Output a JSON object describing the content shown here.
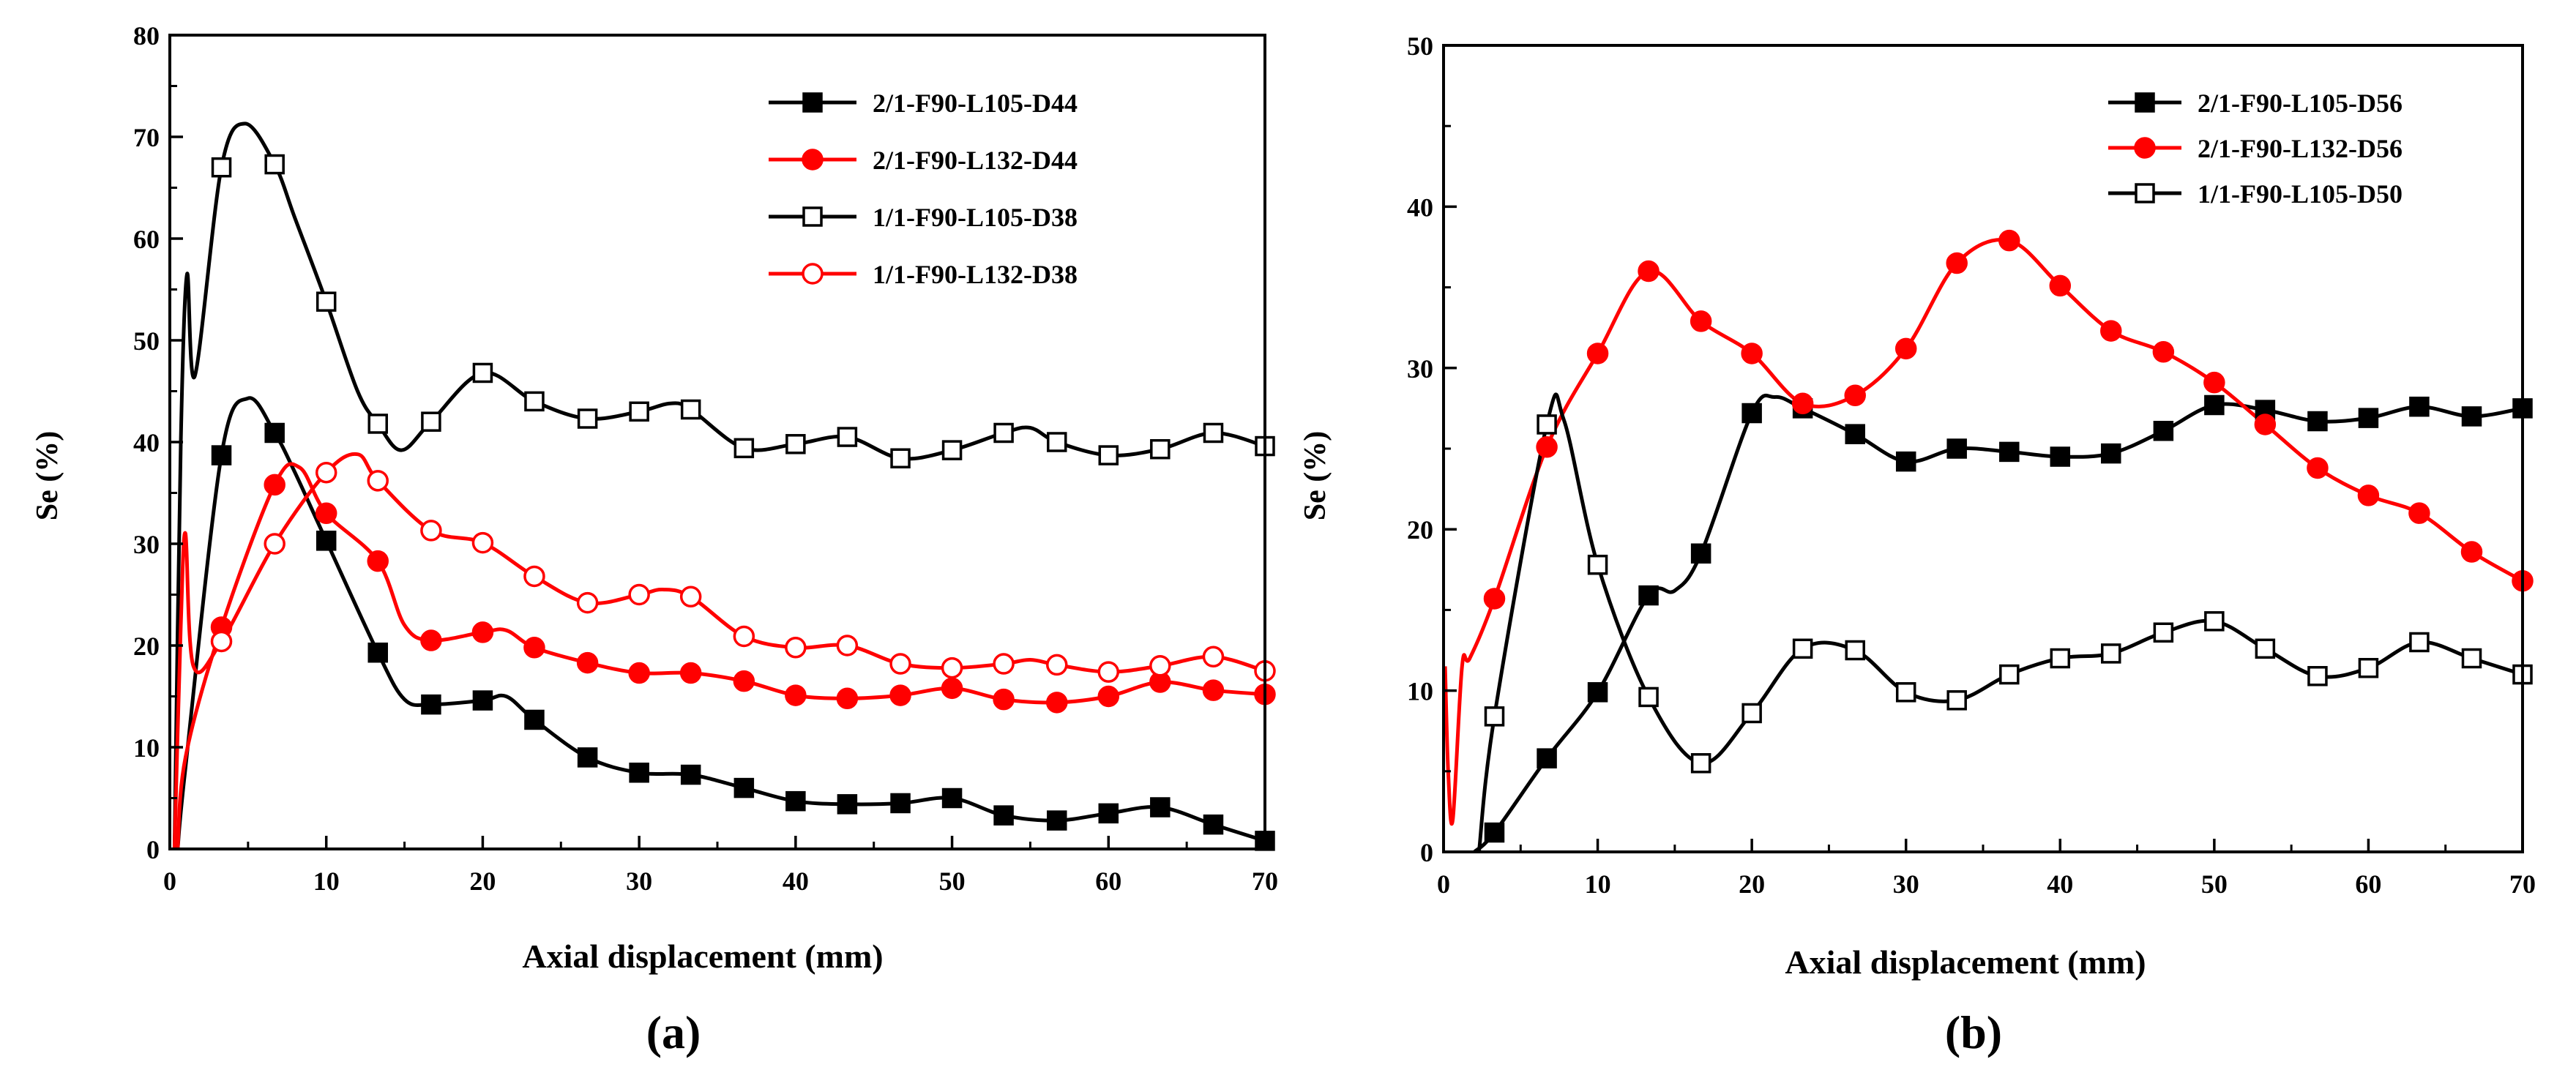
{
  "panels": [
    {
      "panel_label": "(a)",
      "chart_data": {
        "type": "line",
        "xlabel": "Axial displacement (mm)",
        "ylabel": "Se (%)",
        "xlim": [
          0,
          70
        ],
        "ylim": [
          0,
          80
        ],
        "xticks": [
          0,
          10,
          20,
          30,
          40,
          50,
          60,
          70
        ],
        "yticks": [
          0,
          10,
          20,
          30,
          40,
          50,
          60,
          70,
          80
        ],
        "grid": false,
        "legend_position": "top-right",
        "series": [
          {
            "name": "2/1-F90-L105-D44",
            "color": "#000000",
            "marker": "square-filled",
            "x": [
              0.5,
              1,
              3.3,
              5,
              6.7,
              8,
              10,
              13.3,
              15,
              16.7,
              20,
              21.5,
              23.3,
              26.7,
              30,
              33.3,
              36.7,
              40,
              43.3,
              46.7,
              50,
              53.3,
              56.7,
              60,
              63.3,
              66.7,
              70
            ],
            "y": [
              0,
              8,
              38.7,
              44.3,
              40.9,
              37,
              30.3,
              19.3,
              14.7,
              14.2,
              14.6,
              15,
              12.7,
              9.0,
              7.5,
              7.3,
              6.0,
              4.7,
              4.4,
              4.5,
              5.0,
              3.3,
              2.8,
              3.5,
              4.1,
              2.4,
              0.8
            ],
            "markers_x": [
              3.3,
              6.7,
              10,
              13.3,
              16.7,
              20,
              23.3,
              26.7,
              30,
              33.3,
              36.7,
              40,
              43.3,
              46.7,
              50,
              53.3,
              56.7,
              60,
              63.3,
              66.7,
              70
            ]
          },
          {
            "name": "2/1-F90-L132-D44",
            "color": "#ff0000",
            "marker": "circle-filled",
            "x": [
              0.5,
              1,
              3.3,
              6.7,
              8.3,
              10,
              13.3,
              15,
              16.7,
              20,
              21.5,
              23.3,
              26.7,
              30,
              33.3,
              36.7,
              40,
              43.3,
              46.7,
              50,
              53.3,
              56.7,
              60,
              63.3,
              66.7,
              70
            ],
            "y": [
              0,
              9,
              21.8,
              35.8,
              37.5,
              33.0,
              28.3,
              22,
              20.5,
              21.3,
              21.5,
              19.8,
              18.3,
              17.3,
              17.3,
              16.5,
              15.1,
              14.8,
              15.1,
              15.8,
              14.7,
              14.4,
              15.0,
              16.4,
              15.6,
              15.2
            ],
            "markers_x": [
              3.3,
              6.7,
              10,
              13.3,
              16.7,
              20,
              23.3,
              26.7,
              30,
              33.3,
              36.7,
              40,
              43.3,
              46.7,
              50,
              53.3,
              56.7,
              60,
              63.3,
              66.7,
              70
            ]
          },
          {
            "name": "1/1-F90-L105-D38",
            "color": "#000000",
            "marker": "square-open",
            "x": [
              0.3,
              0.7,
              1.1,
              1.6,
              3.3,
              4.8,
              6.7,
              8,
              10,
              12,
              13.3,
              14.8,
              16.7,
              20,
              23.3,
              26.7,
              30,
              32,
              33.3,
              36.7,
              40,
              43.3,
              46.7,
              50,
              53.3,
              55,
              56.7,
              60,
              63.3,
              66.7,
              70
            ],
            "y": [
              0,
              40,
              56.5,
              46.5,
              67,
              71.3,
              67.3,
              62,
              53.8,
              45,
              41.8,
              39.2,
              42.0,
              46.8,
              44.0,
              42.3,
              43.0,
              43.8,
              43.2,
              39.4,
              39.8,
              40.5,
              38.4,
              39.2,
              40.9,
              41.4,
              40.0,
              38.7,
              39.3,
              40.9,
              39.6
            ],
            "markers_x": [
              3.3,
              6.7,
              10,
              13.3,
              16.7,
              20,
              23.3,
              26.7,
              30,
              33.3,
              36.7,
              40,
              43.3,
              46.7,
              50,
              53.3,
              56.7,
              60,
              63.3,
              66.7,
              70
            ]
          },
          {
            "name": "1/1-F90-L132-D38",
            "color": "#ff0000",
            "marker": "circle-open",
            "x": [
              0.3,
              0.7,
              1.0,
              1.5,
              3.3,
              6.7,
              10,
              12,
              13.3,
              16.7,
              20,
              23.3,
              26.7,
              30,
              31.5,
              33.3,
              36.7,
              40,
              43.3,
              46.7,
              50,
              53.3,
              55,
              56.7,
              60,
              63.3,
              66.7,
              70
            ],
            "y": [
              0,
              22,
              31,
              18,
              20.4,
              30.0,
              37.0,
              38.8,
              36.2,
              31.3,
              30.1,
              26.8,
              24.2,
              25.0,
              25.5,
              24.8,
              20.9,
              19.8,
              20.0,
              18.2,
              17.8,
              18.2,
              18.6,
              18.1,
              17.4,
              18.0,
              18.9,
              17.5
            ],
            "markers_x": [
              3.3,
              6.7,
              10,
              13.3,
              16.7,
              20,
              23.3,
              26.7,
              30,
              33.3,
              36.7,
              40,
              43.3,
              46.7,
              50,
              53.3,
              56.7,
              60,
              63.3,
              66.7,
              70
            ]
          }
        ]
      }
    },
    {
      "panel_label": "(b)",
      "chart_data": {
        "type": "line",
        "xlabel": "Axial displacement (mm)",
        "ylabel": "Se (%)",
        "xlim": [
          0,
          70
        ],
        "ylim": [
          0,
          50
        ],
        "xticks": [
          0,
          10,
          20,
          30,
          40,
          50,
          60,
          70
        ],
        "yticks": [
          0,
          10,
          20,
          30,
          40,
          50
        ],
        "grid": false,
        "legend_position": "top-right",
        "series": [
          {
            "name": "2/1-F90-L105-D56",
            "color": "#000000",
            "marker": "square-filled",
            "x": [
              2.0,
              3.3,
              6.7,
              10,
              13.3,
              15,
              16.7,
              20,
              21.5,
              23.3,
              26.7,
              30,
              33.3,
              36.7,
              40,
              43.3,
              46.7,
              50,
              53.3,
              56.7,
              60,
              63.3,
              66.7,
              70
            ],
            "y": [
              0,
              1.2,
              5.8,
              9.9,
              15.9,
              16.2,
              18.5,
              27.2,
              28.2,
              27.5,
              25.9,
              24.2,
              25.0,
              24.8,
              24.5,
              24.7,
              26.1,
              27.7,
              27.4,
              26.7,
              26.9,
              27.6,
              27.0,
              27.5
            ],
            "markers_x": [
              3.3,
              6.7,
              10,
              13.3,
              16.7,
              20,
              23.3,
              26.7,
              30,
              33.3,
              36.7,
              40,
              43.3,
              46.7,
              50,
              53.3,
              56.7,
              60,
              63.3,
              66.7,
              70
            ]
          },
          {
            "name": "2/1-F90-L132-D56",
            "color": "#ff0000",
            "marker": "circle-filled",
            "x": [
              0.1,
              0.3,
              0.6,
              1.2,
              1.7,
              3.3,
              6.7,
              10,
              13.3,
              16.7,
              20,
              23.3,
              26.7,
              30,
              33.3,
              36.7,
              40,
              43.3,
              46.7,
              50,
              53.3,
              56.7,
              60,
              63.3,
              66.7,
              70
            ],
            "y": [
              11.5,
              5,
              2,
              11.5,
              12,
              15.7,
              25.1,
              30.9,
              36.0,
              32.9,
              30.9,
              27.8,
              28.3,
              31.2,
              36.5,
              37.9,
              35.1,
              32.3,
              31.0,
              29.1,
              26.5,
              23.8,
              22.1,
              21.0,
              18.6,
              16.8
            ],
            "markers_x": [
              3.3,
              6.7,
              10,
              13.3,
              16.7,
              20,
              23.3,
              26.7,
              30,
              33.3,
              36.7,
              40,
              43.3,
              46.7,
              50,
              53.3,
              56.7,
              60,
              63.3,
              66.7,
              70
            ]
          },
          {
            "name": "1/1-F90-L105-D50",
            "color": "#000000",
            "marker": "square-open",
            "x": [
              2.3,
              3.3,
              6.7,
              7.8,
              10,
              13.3,
              16.7,
              20,
              23.3,
              26.7,
              30,
              33.3,
              36.7,
              40,
              43.3,
              46.7,
              50,
              53.3,
              56.7,
              60,
              63.3,
              66.7,
              70
            ],
            "y": [
              0,
              8.4,
              26.5,
              26.8,
              17.8,
              9.6,
              5.5,
              8.6,
              12.6,
              12.5,
              9.9,
              9.4,
              11.0,
              12.0,
              12.3,
              13.6,
              14.3,
              12.6,
              10.9,
              11.4,
              13.0,
              12.0,
              11.0
            ],
            "markers_x": [
              3.3,
              6.7,
              10,
              13.3,
              16.7,
              20,
              23.3,
              26.7,
              30,
              33.3,
              36.7,
              40,
              43.3,
              46.7,
              50,
              53.3,
              56.7,
              60,
              63.3,
              66.7,
              70
            ]
          }
        ]
      }
    }
  ]
}
